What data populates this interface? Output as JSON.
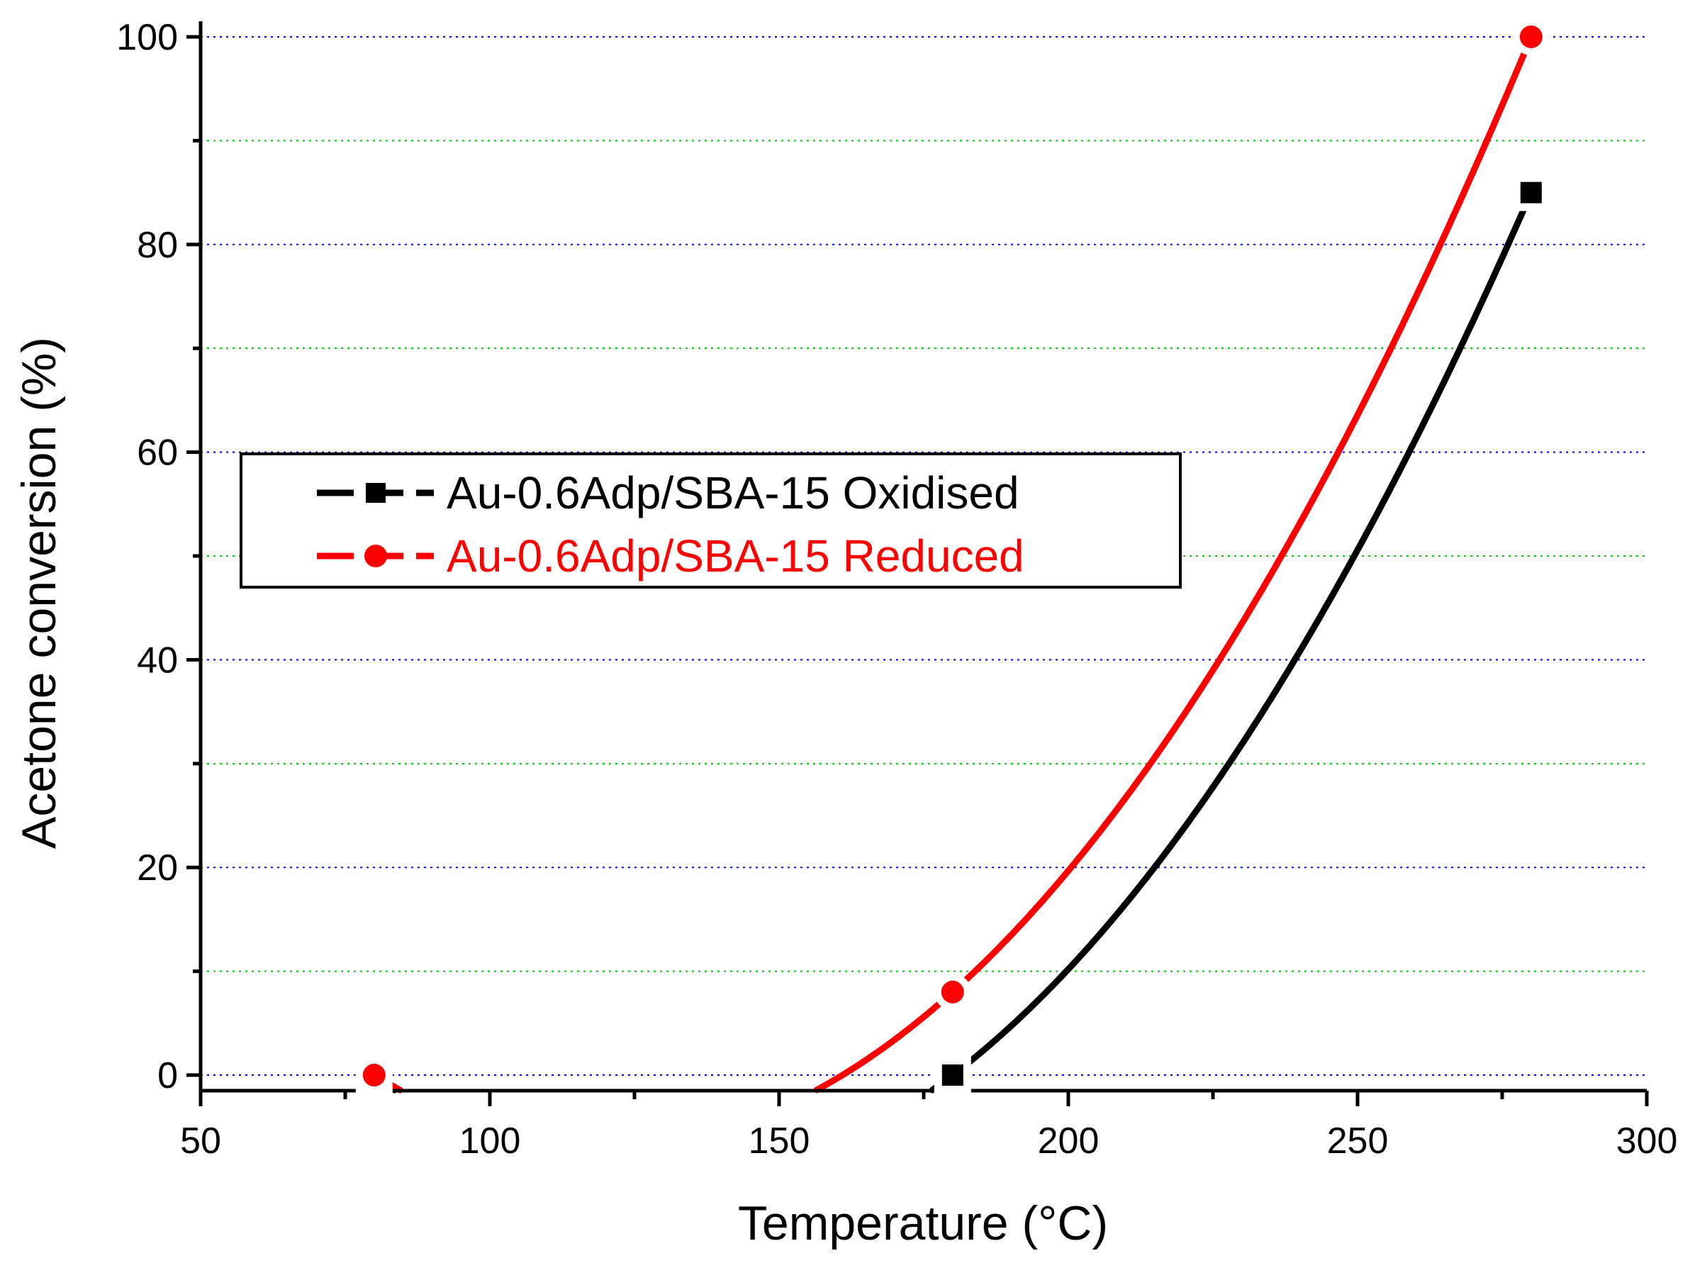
{
  "chart_data": {
    "type": "line",
    "title": "",
    "xlabel": "Temperature (°C)",
    "ylabel": "Acetone conversion (%)",
    "xlim": [
      50,
      300
    ],
    "ylim": [
      -1.5,
      101.5
    ],
    "x_ticks": [
      50,
      100,
      150,
      200,
      250,
      300
    ],
    "y_ticks": [
      0,
      20,
      40,
      60,
      80,
      100
    ],
    "x_tick_labels": [
      "50",
      "100",
      "150",
      "200",
      "250",
      "300"
    ],
    "y_tick_labels": [
      "0",
      "20",
      "40",
      "60",
      "80",
      "100"
    ],
    "grid": {
      "major_y": true,
      "minor_y": true,
      "major_color": "#0000ff",
      "minor_color": "#00cc00"
    },
    "legend": {
      "position": "center-left",
      "bordered": true
    },
    "series": [
      {
        "name": "Au-0.6Adp/SBA-15 Oxidised",
        "color": "#000000",
        "marker": "square",
        "points": [
          {
            "x": 80,
            "y": 0
          },
          {
            "x": 180,
            "y": 0
          },
          {
            "x": 280,
            "y": 85
          }
        ]
      },
      {
        "name": "Au-0.6Adp/SBA-15 Reduced",
        "color": "#ff0000",
        "marker": "circle",
        "points": [
          {
            "x": 80,
            "y": 0
          },
          {
            "x": 180,
            "y": 8
          },
          {
            "x": 280,
            "y": 100
          }
        ]
      }
    ]
  }
}
